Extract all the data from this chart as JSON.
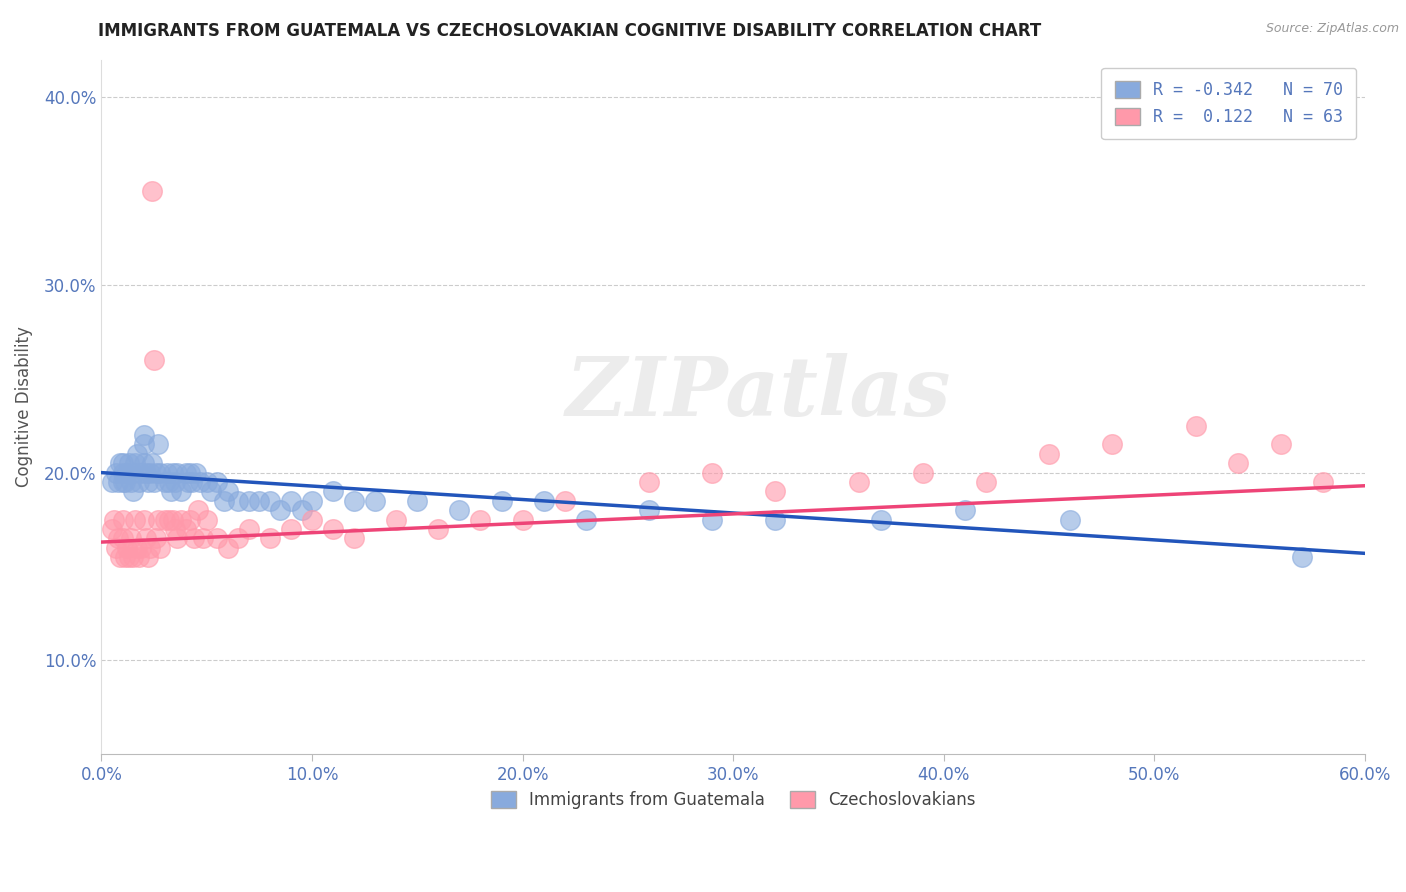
{
  "title": "IMMIGRANTS FROM GUATEMALA VS CZECHOSLOVAKIAN COGNITIVE DISABILITY CORRELATION CHART",
  "source": "Source: ZipAtlas.com",
  "ylabel": "Cognitive Disability",
  "xlim": [
    0.0,
    0.6
  ],
  "ylim": [
    0.05,
    0.42
  ],
  "blue_color": "#88AADD",
  "pink_color": "#FF99AA",
  "blue_line_color": "#2255BB",
  "pink_line_color": "#EE4477",
  "axis_tick_color": "#5577BB",
  "watermark": "ZIPatlas",
  "blue_scatter_x": [
    0.005,
    0.007,
    0.008,
    0.009,
    0.01,
    0.01,
    0.01,
    0.011,
    0.012,
    0.013,
    0.014,
    0.015,
    0.015,
    0.016,
    0.017,
    0.018,
    0.019,
    0.02,
    0.02,
    0.02,
    0.021,
    0.022,
    0.023,
    0.024,
    0.025,
    0.026,
    0.027,
    0.028,
    0.03,
    0.031,
    0.032,
    0.033,
    0.034,
    0.035,
    0.036,
    0.038,
    0.04,
    0.041,
    0.042,
    0.043,
    0.045,
    0.047,
    0.05,
    0.052,
    0.055,
    0.058,
    0.06,
    0.065,
    0.07,
    0.075,
    0.08,
    0.085,
    0.09,
    0.095,
    0.1,
    0.11,
    0.12,
    0.13,
    0.15,
    0.17,
    0.19,
    0.21,
    0.23,
    0.26,
    0.29,
    0.32,
    0.37,
    0.41,
    0.46,
    0.57
  ],
  "blue_scatter_y": [
    0.195,
    0.2,
    0.195,
    0.205,
    0.195,
    0.2,
    0.205,
    0.195,
    0.2,
    0.205,
    0.195,
    0.19,
    0.2,
    0.205,
    0.21,
    0.195,
    0.2,
    0.205,
    0.215,
    0.22,
    0.2,
    0.195,
    0.2,
    0.205,
    0.195,
    0.2,
    0.215,
    0.2,
    0.195,
    0.2,
    0.195,
    0.19,
    0.2,
    0.195,
    0.2,
    0.19,
    0.2,
    0.195,
    0.2,
    0.195,
    0.2,
    0.195,
    0.195,
    0.19,
    0.195,
    0.185,
    0.19,
    0.185,
    0.185,
    0.185,
    0.185,
    0.18,
    0.185,
    0.18,
    0.185,
    0.19,
    0.185,
    0.185,
    0.185,
    0.18,
    0.185,
    0.185,
    0.175,
    0.18,
    0.175,
    0.175,
    0.175,
    0.18,
    0.175,
    0.155
  ],
  "pink_scatter_x": [
    0.005,
    0.006,
    0.007,
    0.008,
    0.009,
    0.01,
    0.01,
    0.011,
    0.012,
    0.013,
    0.014,
    0.015,
    0.016,
    0.017,
    0.018,
    0.019,
    0.02,
    0.021,
    0.022,
    0.023,
    0.024,
    0.025,
    0.026,
    0.027,
    0.028,
    0.03,
    0.032,
    0.034,
    0.035,
    0.036,
    0.038,
    0.04,
    0.042,
    0.044,
    0.046,
    0.048,
    0.05,
    0.055,
    0.06,
    0.065,
    0.07,
    0.08,
    0.09,
    0.1,
    0.11,
    0.12,
    0.14,
    0.16,
    0.18,
    0.2,
    0.22,
    0.26,
    0.29,
    0.32,
    0.36,
    0.39,
    0.42,
    0.45,
    0.48,
    0.52,
    0.54,
    0.56,
    0.58
  ],
  "pink_scatter_y": [
    0.17,
    0.175,
    0.16,
    0.165,
    0.155,
    0.175,
    0.165,
    0.155,
    0.16,
    0.155,
    0.165,
    0.155,
    0.175,
    0.16,
    0.155,
    0.16,
    0.175,
    0.165,
    0.155,
    0.16,
    0.35,
    0.26,
    0.165,
    0.175,
    0.16,
    0.175,
    0.175,
    0.175,
    0.17,
    0.165,
    0.175,
    0.17,
    0.175,
    0.165,
    0.18,
    0.165,
    0.175,
    0.165,
    0.16,
    0.165,
    0.17,
    0.165,
    0.17,
    0.175,
    0.17,
    0.165,
    0.175,
    0.17,
    0.175,
    0.175,
    0.185,
    0.195,
    0.2,
    0.19,
    0.195,
    0.2,
    0.195,
    0.21,
    0.215,
    0.225,
    0.205,
    0.215,
    0.195
  ],
  "blue_trend_x0": 0.0,
  "blue_trend_y0": 0.2,
  "blue_trend_x1": 0.6,
  "blue_trend_y1": 0.157,
  "pink_trend_x0": 0.0,
  "pink_trend_y0": 0.163,
  "pink_trend_x1": 0.6,
  "pink_trend_y1": 0.193
}
